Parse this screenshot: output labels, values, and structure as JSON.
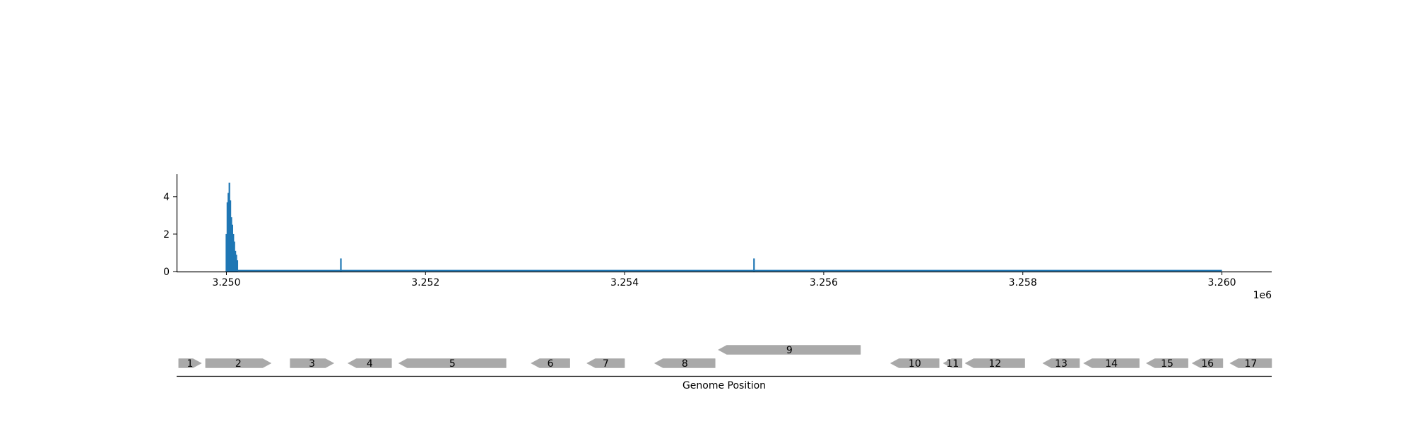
{
  "chart_data": [
    {
      "type": "bar",
      "x_ticks": [
        3.25,
        3.252,
        3.254,
        3.256,
        3.258,
        3.26
      ],
      "x_tick_labels": [
        "3.250",
        "3.252",
        "3.254",
        "3.256",
        "3.258",
        "3.260"
      ],
      "x_offset_label": "1e6",
      "y_ticks": [
        0,
        2,
        4
      ],
      "y_tick_labels": [
        "0",
        "2",
        "4"
      ],
      "xlim": [
        3249500,
        3260500
      ],
      "ylim": [
        0,
        5.2
      ],
      "color": "#1f77b4",
      "grid": false,
      "points": [
        {
          "x": 3250000,
          "y": 2.0
        },
        {
          "x": 3250010,
          "y": 3.7
        },
        {
          "x": 3250020,
          "y": 4.2
        },
        {
          "x": 3250030,
          "y": 4.75
        },
        {
          "x": 3250040,
          "y": 3.8
        },
        {
          "x": 3250050,
          "y": 2.9
        },
        {
          "x": 3250060,
          "y": 2.5
        },
        {
          "x": 3250070,
          "y": 2.0
        },
        {
          "x": 3250080,
          "y": 1.6
        },
        {
          "x": 3250090,
          "y": 1.1
        },
        {
          "x": 3250100,
          "y": 0.9
        },
        {
          "x": 3250110,
          "y": 0.6
        },
        {
          "x": 3251150,
          "y": 0.7
        },
        {
          "x": 3255300,
          "y": 0.7
        }
      ],
      "baseline": {
        "start": 3250000,
        "end": 3260000,
        "value": 0.05
      }
    },
    {
      "type": "gene-map",
      "xlabel": "Genome Position",
      "genes": [
        {
          "label": "1",
          "start": 3249520,
          "end": 3249750,
          "strand": "+",
          "row": 0
        },
        {
          "label": "2",
          "start": 3249790,
          "end": 3250450,
          "strand": "+",
          "row": 0
        },
        {
          "label": "3",
          "start": 3250640,
          "end": 3251080,
          "strand": "+",
          "row": 0
        },
        {
          "label": "4",
          "start": 3251220,
          "end": 3251660,
          "strand": "-",
          "row": 0
        },
        {
          "label": "5",
          "start": 3251730,
          "end": 3252810,
          "strand": "-",
          "row": 0
        },
        {
          "label": "6",
          "start": 3253060,
          "end": 3253450,
          "strand": "-",
          "row": 0
        },
        {
          "label": "7",
          "start": 3253620,
          "end": 3254000,
          "strand": "-",
          "row": 0
        },
        {
          "label": "8",
          "start": 3254300,
          "end": 3254910,
          "strand": "-",
          "row": 0
        },
        {
          "label": "9",
          "start": 3254940,
          "end": 3256370,
          "strand": "-",
          "row": 1
        },
        {
          "label": "10",
          "start": 3256670,
          "end": 3257160,
          "strand": "-",
          "row": 0
        },
        {
          "label": "11",
          "start": 3257200,
          "end": 3257390,
          "strand": "-",
          "row": 0
        },
        {
          "label": "12",
          "start": 3257420,
          "end": 3258020,
          "strand": "-",
          "row": 0
        },
        {
          "label": "13",
          "start": 3258200,
          "end": 3258570,
          "strand": "-",
          "row": 0
        },
        {
          "label": "14",
          "start": 3258610,
          "end": 3259170,
          "strand": "-",
          "row": 0
        },
        {
          "label": "15",
          "start": 3259240,
          "end": 3259660,
          "strand": "-",
          "row": 0
        },
        {
          "label": "16",
          "start": 3259700,
          "end": 3260010,
          "strand": "-",
          "row": 0
        },
        {
          "label": "17",
          "start": 3260080,
          "end": 3260500,
          "strand": "-",
          "row": 0
        }
      ]
    }
  ]
}
